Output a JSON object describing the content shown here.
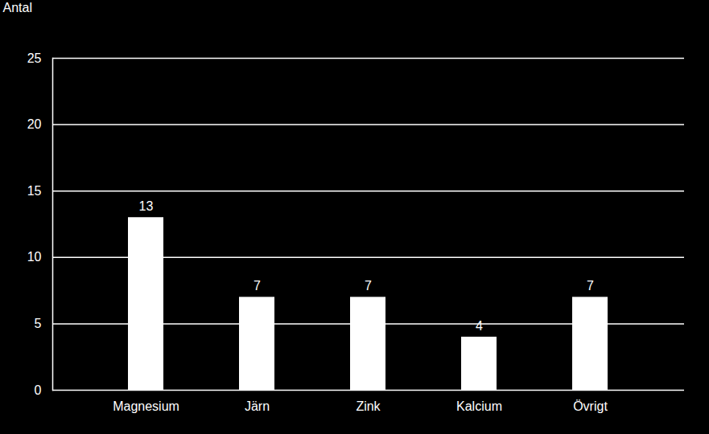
{
  "chart_data": {
    "type": "bar",
    "y_label": "Antal",
    "categories": [
      "Magnesium",
      "Järn",
      "Zink",
      "Kalcium",
      "Övrigt"
    ],
    "values": [
      13,
      7,
      7,
      4,
      7
    ],
    "color": "#ffffff",
    "ylim": [
      0,
      25
    ],
    "yticks": [
      0,
      5,
      10,
      15,
      20,
      25
    ],
    "grid": true,
    "data_labels": true
  }
}
